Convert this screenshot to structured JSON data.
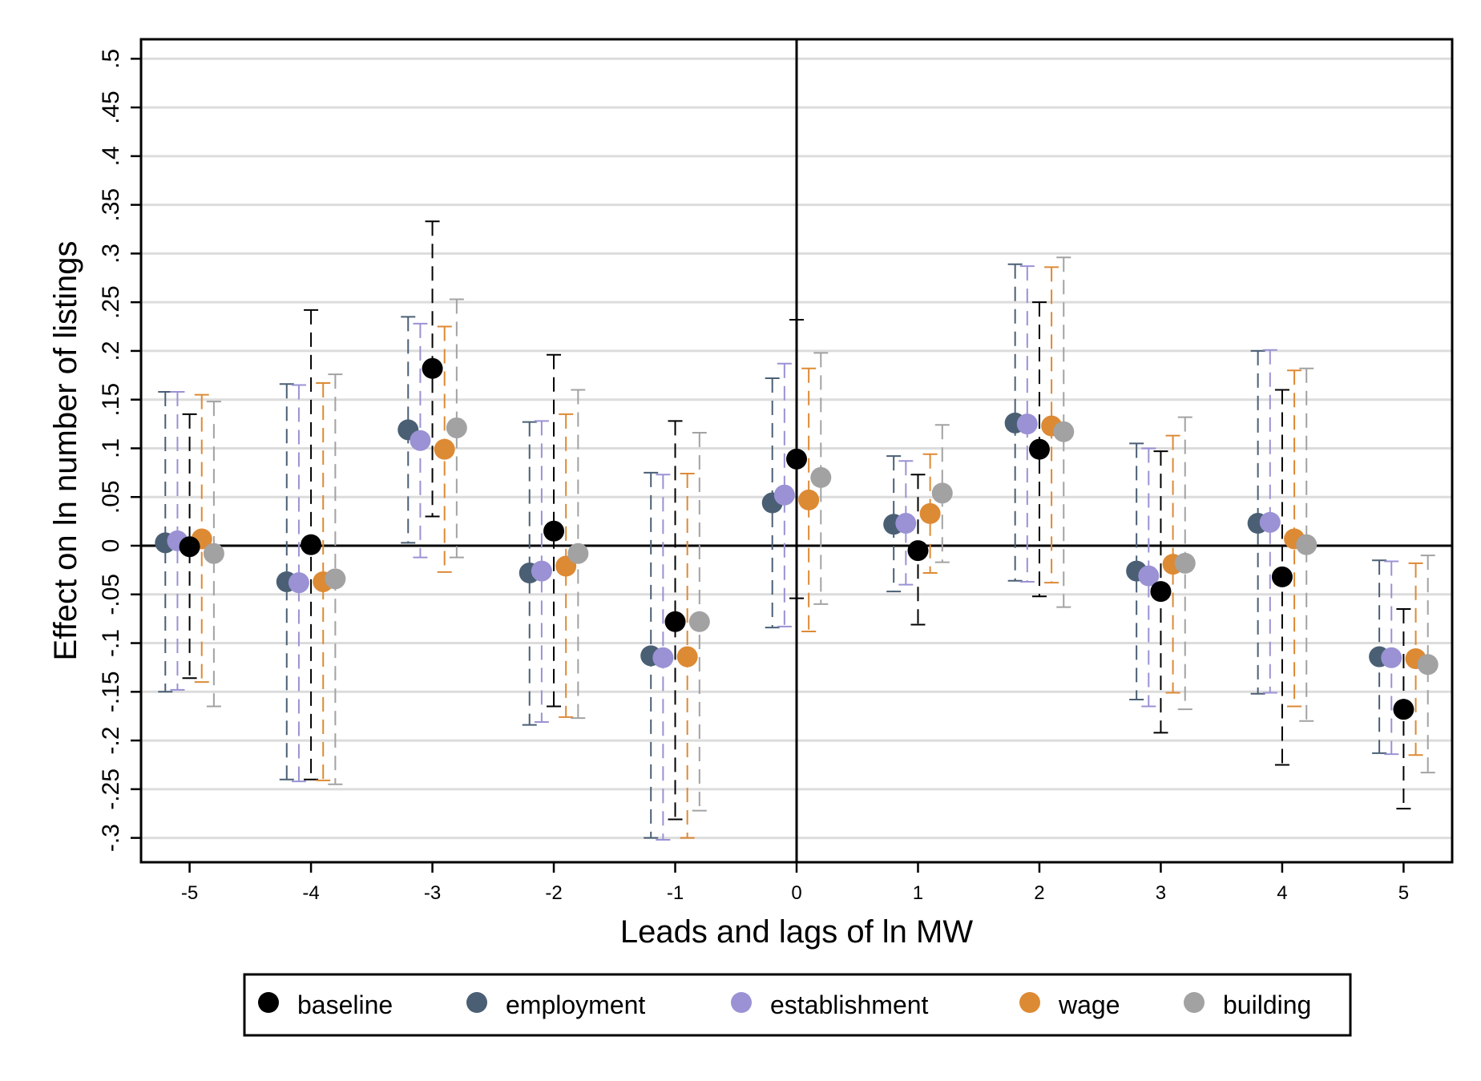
{
  "chart_data": {
    "type": "scatter",
    "title": "",
    "xlabel": "Leads and lags of ln MW",
    "ylabel": "Effect on ln number of listings",
    "x": [
      -5,
      -4,
      -3,
      -2,
      -1,
      0,
      1,
      2,
      3,
      4,
      5
    ],
    "x_tick_labels": [
      "-5",
      "-4",
      "-3",
      "-2",
      "-1",
      "0",
      "1",
      "2",
      "3",
      "4",
      "5"
    ],
    "xlim": [
      -5.4,
      5.4
    ],
    "ylim": [
      -0.325,
      0.52
    ],
    "y_ticks": [
      -0.3,
      -0.25,
      -0.2,
      -0.15,
      -0.1,
      -0.05,
      0,
      0.05,
      0.1,
      0.15,
      0.2,
      0.25,
      0.3,
      0.35,
      0.4,
      0.45,
      0.5
    ],
    "y_tick_labels": [
      "-.3",
      "-.25",
      "-.2",
      "-.15",
      "-.1",
      "-.05",
      "0",
      ".05",
      ".1",
      ".15",
      ".2",
      ".25",
      ".3",
      ".35",
      ".4",
      ".45",
      ".5"
    ],
    "grid": true,
    "reference_lines": {
      "x": 0,
      "y": 0
    },
    "legend_position": "bottom",
    "series": [
      {
        "name": "baseline",
        "color": "#000000",
        "offset": 0,
        "estimate": [
          -0.001,
          0.001,
          0.182,
          0.015,
          -0.078,
          0.089,
          -0.005,
          0.099,
          -0.047,
          -0.032,
          -0.168
        ],
        "ci_low": [
          -0.136,
          -0.24,
          0.03,
          -0.165,
          -0.281,
          -0.054,
          -0.081,
          -0.052,
          -0.192,
          -0.225,
          -0.27
        ],
        "ci_high": [
          0.135,
          0.242,
          0.333,
          0.196,
          0.128,
          0.232,
          0.073,
          0.25,
          0.097,
          0.16,
          -0.065
        ]
      },
      {
        "name": "employment",
        "color": "#4a5f74",
        "offset": -0.2,
        "estimate": [
          0.003,
          -0.037,
          0.119,
          -0.028,
          -0.113,
          0.044,
          0.022,
          0.126,
          -0.026,
          0.023,
          -0.114
        ],
        "ci_low": [
          -0.15,
          -0.24,
          0.003,
          -0.184,
          -0.3,
          -0.084,
          -0.047,
          -0.036,
          -0.158,
          -0.152,
          -0.213
        ],
        "ci_high": [
          0.158,
          0.166,
          0.235,
          0.127,
          0.075,
          0.172,
          0.092,
          0.289,
          0.105,
          0.2,
          -0.015
        ]
      },
      {
        "name": "establishment",
        "color": "#9a92d4",
        "offset": -0.1,
        "estimate": [
          0.005,
          -0.038,
          0.108,
          -0.026,
          -0.115,
          0.052,
          0.023,
          0.125,
          -0.031,
          0.024,
          -0.115
        ],
        "ci_low": [
          -0.148,
          -0.242,
          -0.012,
          -0.181,
          -0.302,
          -0.083,
          -0.04,
          -0.037,
          -0.165,
          -0.151,
          -0.214
        ],
        "ci_high": [
          0.158,
          0.165,
          0.228,
          0.128,
          0.073,
          0.187,
          0.087,
          0.287,
          0.1,
          0.201,
          -0.016
        ]
      },
      {
        "name": "wage",
        "color": "#dd8a35",
        "offset": 0.1,
        "estimate": [
          0.007,
          -0.037,
          0.099,
          -0.021,
          -0.114,
          0.047,
          0.033,
          0.123,
          -0.019,
          0.007,
          -0.116
        ],
        "ci_low": [
          -0.14,
          -0.241,
          -0.027,
          -0.176,
          -0.3,
          -0.088,
          -0.028,
          -0.038,
          -0.151,
          -0.165,
          -0.215
        ],
        "ci_high": [
          0.155,
          0.167,
          0.225,
          0.135,
          0.074,
          0.182,
          0.094,
          0.286,
          0.113,
          0.18,
          -0.018
        ]
      },
      {
        "name": "building",
        "color": "#a2a2a2",
        "offset": 0.2,
        "estimate": [
          -0.008,
          -0.034,
          0.121,
          -0.008,
          -0.078,
          0.07,
          0.054,
          0.117,
          -0.018,
          0.001,
          -0.122
        ],
        "ci_low": [
          -0.165,
          -0.245,
          -0.012,
          -0.177,
          -0.272,
          -0.06,
          -0.017,
          -0.063,
          -0.168,
          -0.18,
          -0.233
        ],
        "ci_high": [
          0.148,
          0.176,
          0.253,
          0.16,
          0.116,
          0.198,
          0.124,
          0.296,
          0.132,
          0.182,
          -0.01
        ]
      }
    ]
  }
}
